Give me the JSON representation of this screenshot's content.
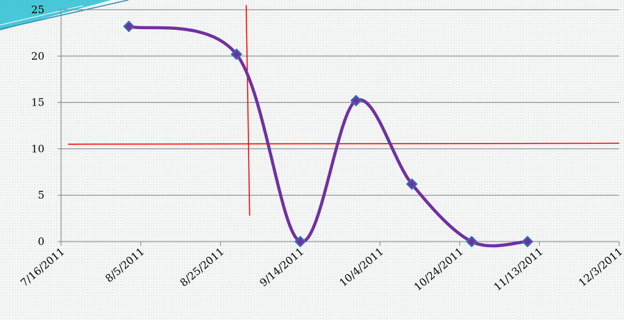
{
  "chart_data": {
    "type": "line",
    "title": "",
    "xlabel": "",
    "ylabel": "",
    "x_axis_type": "date",
    "xlim": [
      "7/16/2011",
      "12/3/2011"
    ],
    "ylim": [
      0,
      25
    ],
    "y_ticks": [
      0,
      5,
      10,
      15,
      20,
      25
    ],
    "x_ticks": [
      "7/16/2011",
      "8/5/2011",
      "8/25/2011",
      "9/14/2011",
      "10/4/2011",
      "10/24/2011",
      "11/13/2011",
      "12/3/2011"
    ],
    "grid": "horizontal",
    "smoothed": true,
    "marker": "diamond",
    "series": [
      {
        "x": [
          "8/2/2011",
          "8/29/2011",
          "9/14/2011",
          "9/28/2011",
          "10/12/2011",
          "10/27/2011",
          "11/10/2011"
        ],
        "y": [
          23.2,
          20.2,
          0,
          15.2,
          6.2,
          0,
          0
        ]
      }
    ],
    "annotations": {
      "horizontal_line_y": [
        10.5,
        10.6
      ],
      "vertical_line": {
        "x": "8/29/2011",
        "y_range": [
          2.8,
          25.5
        ]
      }
    },
    "colors": {
      "line": "#7030a0",
      "marker_fill": "#7030a0",
      "marker_stroke": "#2e74b5",
      "grid": "#808080",
      "annotation": "#ff0000"
    }
  }
}
